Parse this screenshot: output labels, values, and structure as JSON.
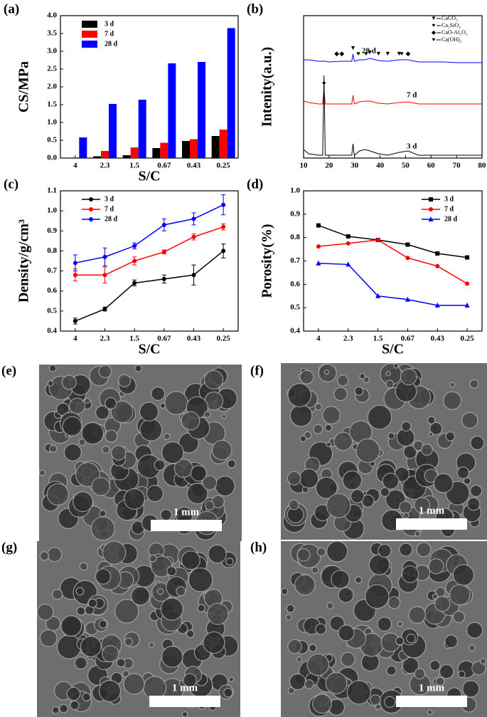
{
  "chart_data": [
    {
      "type": "bar",
      "panel": "(a)",
      "y_label": "CS/MPa",
      "x_label": "S/C",
      "categories": [
        "4",
        "2.3",
        "1.5",
        "0.67",
        "0.43",
        "0.25"
      ],
      "series": [
        {
          "name": "3 d",
          "color": "#000000",
          "values": [
            0.01,
            0.05,
            0.08,
            0.28,
            0.48,
            0.62
          ]
        },
        {
          "name": "7 d",
          "color": "#ff0000",
          "values": [
            0.02,
            0.2,
            0.3,
            0.43,
            0.53,
            0.8
          ]
        },
        {
          "name": "28 d",
          "color": "#0000ff",
          "values": [
            0.58,
            1.52,
            1.64,
            2.66,
            2.7,
            3.65
          ]
        }
      ],
      "ylim": [
        0,
        4
      ],
      "yticks": [
        {
          "value": 0,
          "label": "0.0"
        },
        0.5,
        {
          "value": 1,
          "label": "1.0"
        },
        1.5,
        {
          "value": 2,
          "label": "2.0"
        },
        2.5,
        {
          "value": 3,
          "label": "3.0"
        },
        3.5,
        {
          "value": 4,
          "label": "4.0"
        }
      ],
      "legend": "upper left"
    },
    {
      "type": "xrd",
      "panel": "(b)",
      "y_label": "Intenity(a.u.)",
      "x": [
        10,
        12,
        14,
        16,
        17.5,
        18,
        18.5,
        20,
        25,
        28.9,
        29.4,
        29.9,
        32,
        34,
        36,
        39.4,
        43,
        47.5,
        51,
        55,
        60,
        65,
        70,
        75,
        80
      ],
      "series": [
        {
          "name": "28 d",
          "color": "#0000ff",
          "values": [
            69,
            69,
            68.5,
            68,
            68,
            68,
            68,
            67.5,
            68,
            68,
            73,
            68,
            69,
            69,
            70,
            68.5,
            68,
            69,
            69,
            67.5,
            67.5,
            67.5,
            67,
            67,
            67
          ]
        },
        {
          "name": "7 d",
          "color": "#ff0000",
          "values": [
            40,
            39,
            38.5,
            38,
            38,
            48,
            38,
            38,
            38,
            38,
            44,
            38,
            39.5,
            40,
            40,
            38.5,
            38,
            39,
            39.5,
            38,
            38,
            38,
            38,
            38,
            38
          ]
        },
        {
          "name": "3 d",
          "color": "#000000",
          "values": [
            6,
            3,
            2.5,
            2,
            2,
            58,
            2,
            2,
            2,
            2,
            10,
            2,
            5,
            6,
            5,
            3,
            2,
            4,
            5,
            2,
            2,
            2,
            2,
            2,
            2
          ]
        }
      ],
      "xlim": [
        10,
        80
      ],
      "xticks": [
        10,
        20,
        30,
        40,
        50,
        60,
        70,
        80
      ],
      "ylim": [
        0,
        100
      ],
      "phases": [
        {
          "symbol": "▼",
          "label": "CaCO₃"
        },
        {
          "symbol": "♥",
          "label": "Ca₂SiO₄"
        },
        {
          "symbol": "◆",
          "label": "CaO-Al₂O₃"
        },
        {
          "symbol": "♥",
          "label": "Ca(OH)₂"
        }
      ],
      "peaks": [
        {
          "x": 23,
          "phase": 2,
          "series": 0
        },
        {
          "x": 25,
          "phase": 2,
          "series": 0
        },
        {
          "x": 29.4,
          "phase": 0,
          "series": 0
        },
        {
          "x": 31.5,
          "phase": 1,
          "series": 0
        },
        {
          "x": 34.5,
          "phase": 1,
          "series": 0
        },
        {
          "x": 36,
          "phase": 0,
          "series": 0
        },
        {
          "x": 39.4,
          "phase": 0,
          "series": 0
        },
        {
          "x": 43,
          "phase": 0,
          "series": 0
        },
        {
          "x": 47.5,
          "phase": 0,
          "series": 0
        },
        {
          "x": 48.5,
          "phase": 1,
          "series": 0
        },
        {
          "x": 51,
          "phase": 2,
          "series": 0
        },
        {
          "x": 18,
          "phase": 3,
          "series": 1
        }
      ]
    },
    {
      "type": "line",
      "panel": "(c)",
      "y_label": "Density/g/cm³",
      "x_label": "S/C",
      "categories": [
        "4",
        "2.3",
        "1.5",
        "0.67",
        "0.43",
        "0.25"
      ],
      "series": [
        {
          "name": "3 d",
          "color": "#000000",
          "marker": "circle",
          "values": [
            0.45,
            0.51,
            0.64,
            0.66,
            0.68,
            0.8
          ],
          "errors": [
            0.015,
            0.01,
            0.015,
            0.02,
            0.05,
            0.035
          ]
        },
        {
          "name": "7 d",
          "color": "#ff0000",
          "marker": "circle",
          "values": [
            0.68,
            0.68,
            0.75,
            0.795,
            0.87,
            0.92
          ],
          "errors": [
            0.03,
            0.04,
            0.02,
            0.01,
            0.015,
            0.015
          ]
        },
        {
          "name": "28 d",
          "color": "#0000ff",
          "marker": "circle",
          "values": [
            0.74,
            0.77,
            0.825,
            0.93,
            0.96,
            1.03
          ],
          "errors": [
            0.04,
            0.045,
            0.015,
            0.03,
            0.03,
            0.05
          ]
        }
      ],
      "ylim": [
        0.4,
        1.1
      ],
      "yticks": [
        0.4,
        0.5,
        0.6,
        0.7,
        0.8,
        0.9,
        {
          "value": 1,
          "label": "1.0"
        },
        1.1
      ],
      "legend": "upper left"
    },
    {
      "type": "line",
      "panel": "(d)",
      "y_label": "Porosity(%)",
      "x_label": "S/C",
      "categories": [
        "4",
        "2.3",
        "1.5",
        "0.67",
        "0.43",
        "0.25"
      ],
      "series": [
        {
          "name": "3 d",
          "color": "#000000",
          "marker": "square",
          "values": [
            0.852,
            0.805,
            0.79,
            0.77,
            0.732,
            0.715
          ]
        },
        {
          "name": "7 d",
          "color": "#ff0000",
          "marker": "circle",
          "values": [
            0.762,
            0.775,
            0.79,
            0.713,
            0.678,
            0.603
          ]
        },
        {
          "name": "28 d",
          "color": "#0000ff",
          "marker": "triangle",
          "values": [
            0.69,
            0.685,
            0.55,
            0.535,
            0.51,
            0.51
          ]
        }
      ],
      "ylim": [
        0.4,
        1.0
      ],
      "yticks": [
        0.4,
        0.5,
        0.6,
        0.7,
        0.8,
        0.9,
        {
          "value": 1,
          "label": "1.0"
        }
      ],
      "legend": "upper right"
    }
  ],
  "images": [
    {
      "panel": "(e)",
      "scale_bar": "1 mm"
    },
    {
      "panel": "(f)",
      "scale_bar": "1 mm"
    },
    {
      "panel": "(g)",
      "scale_bar": "1 mm"
    },
    {
      "panel": "(h)",
      "scale_bar": "1 mm"
    }
  ]
}
